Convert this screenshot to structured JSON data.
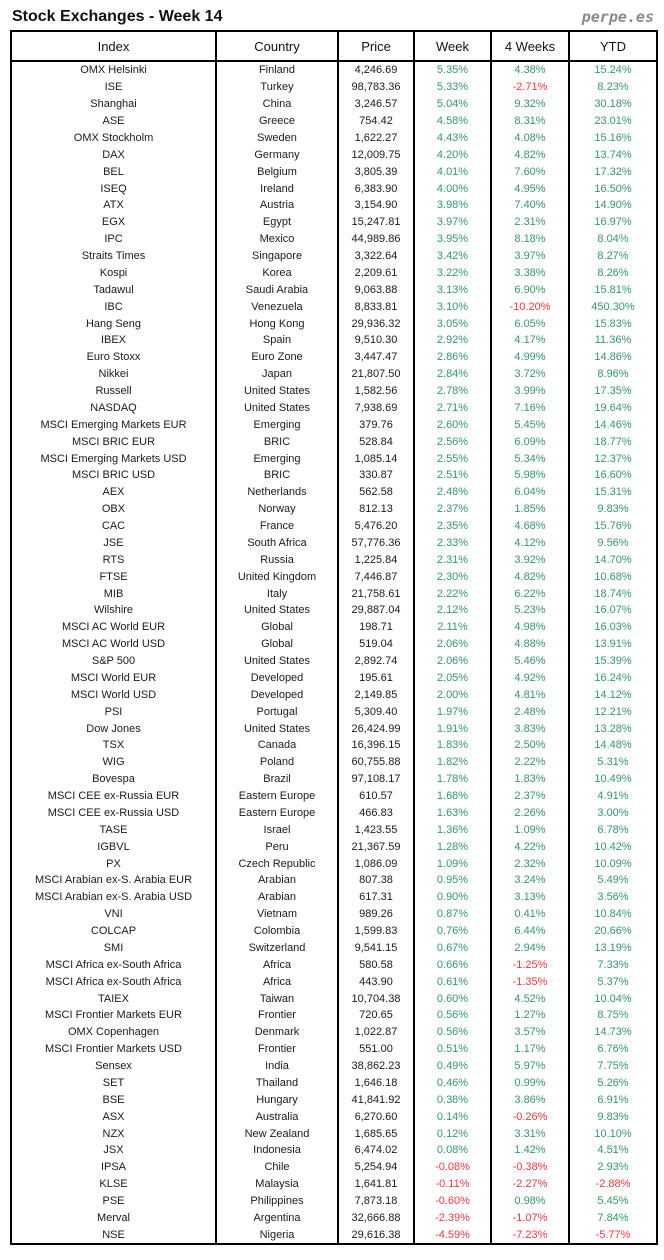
{
  "page": {
    "title": "Stock Exchanges - Week 14",
    "brand": "perpe.es"
  },
  "colors": {
    "positive": "#339966",
    "negative": "#f63a3a",
    "text": "#1a1a1a",
    "border": "#000000",
    "brand_gray": "#8a8a8a"
  },
  "chart_data": {
    "type": "table",
    "title": "Stock Exchanges - Week 14",
    "columns": [
      "Index",
      "Country",
      "Price",
      "Week",
      "4 Weeks",
      "YTD"
    ],
    "rows": [
      [
        "OMX Helsinki",
        "Finland",
        "4,246.69",
        "5.35%",
        "4.38%",
        "15.24%"
      ],
      [
        "ISE",
        "Turkey",
        "98,783.36",
        "5.33%",
        "-2.71%",
        "8.23%"
      ],
      [
        "Shanghai",
        "China",
        "3,246.57",
        "5.04%",
        "9.32%",
        "30.18%"
      ],
      [
        "ASE",
        "Greece",
        "754.42",
        "4.58%",
        "8.31%",
        "23.01%"
      ],
      [
        "OMX Stockholm",
        "Sweden",
        "1,622.27",
        "4.43%",
        "4.08%",
        "15.16%"
      ],
      [
        "DAX",
        "Germany",
        "12,009.75",
        "4.20%",
        "4.82%",
        "13.74%"
      ],
      [
        "BEL",
        "Belgium",
        "3,805.39",
        "4.01%",
        "7.60%",
        "17.32%"
      ],
      [
        "ISEQ",
        "Ireland",
        "6,383.90",
        "4.00%",
        "4.95%",
        "16.50%"
      ],
      [
        "ATX",
        "Austria",
        "3,154.90",
        "3.98%",
        "7.40%",
        "14.90%"
      ],
      [
        "EGX",
        "Egypt",
        "15,247.81",
        "3.97%",
        "2.31%",
        "16.97%"
      ],
      [
        "IPC",
        "Mexico",
        "44,989.86",
        "3.95%",
        "8.18%",
        "8.04%"
      ],
      [
        "Straits Times",
        "Singapore",
        "3,322.64",
        "3.42%",
        "3.97%",
        "8.27%"
      ],
      [
        "Kospi",
        "Korea",
        "2,209.61",
        "3.22%",
        "3.38%",
        "8.26%"
      ],
      [
        "Tadawul",
        "Saudi Arabia",
        "9,063.88",
        "3.13%",
        "6.90%",
        "15.81%"
      ],
      [
        "IBC",
        "Venezuela",
        "8,833.81",
        "3.10%",
        "-10.20%",
        "450.30%"
      ],
      [
        "Hang Seng",
        "Hong Kong",
        "29,936.32",
        "3.05%",
        "6.05%",
        "15.83%"
      ],
      [
        "IBEX",
        "Spain",
        "9,510.30",
        "2.92%",
        "4.17%",
        "11.36%"
      ],
      [
        "Euro Stoxx",
        "Euro Zone",
        "3,447.47",
        "2.86%",
        "4.99%",
        "14.86%"
      ],
      [
        "Nikkei",
        "Japan",
        "21,807.50",
        "2.84%",
        "3.72%",
        "8.96%"
      ],
      [
        "Russell",
        "United States",
        "1,582.56",
        "2.78%",
        "3.99%",
        "17.35%"
      ],
      [
        "NASDAQ",
        "United States",
        "7,938.69",
        "2.71%",
        "7.16%",
        "19.64%"
      ],
      [
        "MSCI Emerging Markets EUR",
        "Emerging",
        "379.76",
        "2.60%",
        "5.45%",
        "14.46%"
      ],
      [
        "MSCI BRIC EUR",
        "BRIC",
        "528.84",
        "2.56%",
        "6.09%",
        "18.77%"
      ],
      [
        "MSCI Emerging Markets USD",
        "Emerging",
        "1,085.14",
        "2.55%",
        "5.34%",
        "12.37%"
      ],
      [
        "MSCI BRIC USD",
        "BRIC",
        "330.87",
        "2.51%",
        "5.98%",
        "16.60%"
      ],
      [
        "AEX",
        "Netherlands",
        "562.58",
        "2.48%",
        "6.04%",
        "15.31%"
      ],
      [
        "OBX",
        "Norway",
        "812.13",
        "2.37%",
        "1.85%",
        "9.83%"
      ],
      [
        "CAC",
        "France",
        "5,476.20",
        "2.35%",
        "4.68%",
        "15.76%"
      ],
      [
        "JSE",
        "South Africa",
        "57,776.36",
        "2.33%",
        "4.12%",
        "9.56%"
      ],
      [
        "RTS",
        "Russia",
        "1,225.84",
        "2.31%",
        "3.92%",
        "14.70%"
      ],
      [
        "FTSE",
        "United Kingdom",
        "7,446.87",
        "2.30%",
        "4.82%",
        "10.68%"
      ],
      [
        "MIB",
        "Italy",
        "21,758.61",
        "2.22%",
        "6.22%",
        "18.74%"
      ],
      [
        "Wilshire",
        "United States",
        "29,887.04",
        "2.12%",
        "5.23%",
        "16.07%"
      ],
      [
        "MSCI AC World EUR",
        "Global",
        "198.71",
        "2.11%",
        "4.98%",
        "16.03%"
      ],
      [
        "MSCI AC World USD",
        "Global",
        "519.04",
        "2.06%",
        "4.88%",
        "13.91%"
      ],
      [
        "S&P 500",
        "United States",
        "2,892.74",
        "2.06%",
        "5.46%",
        "15.39%"
      ],
      [
        "MSCI World EUR",
        "Developed",
        "195.61",
        "2.05%",
        "4.92%",
        "16.24%"
      ],
      [
        "MSCI World USD",
        "Developed",
        "2,149.85",
        "2.00%",
        "4.81%",
        "14.12%"
      ],
      [
        "PSI",
        "Portugal",
        "5,309.40",
        "1.97%",
        "2.48%",
        "12.21%"
      ],
      [
        "Dow Jones",
        "United States",
        "26,424.99",
        "1.91%",
        "3.83%",
        "13.28%"
      ],
      [
        "TSX",
        "Canada",
        "16,396.15",
        "1.83%",
        "2.50%",
        "14.48%"
      ],
      [
        "WIG",
        "Poland",
        "60,755.88",
        "1.82%",
        "2.22%",
        "5.31%"
      ],
      [
        "Bovespa",
        "Brazil",
        "97,108.17",
        "1.78%",
        "1.83%",
        "10.49%"
      ],
      [
        "MSCI CEE ex-Russia EUR",
        "Eastern Europe",
        "610.57",
        "1.68%",
        "2.37%",
        "4.91%"
      ],
      [
        "MSCI CEE ex-Russia USD",
        "Eastern Europe",
        "466.83",
        "1.63%",
        "2.26%",
        "3.00%"
      ],
      [
        "TASE",
        "Israel",
        "1,423.55",
        "1.36%",
        "1.09%",
        "6.78%"
      ],
      [
        "IGBVL",
        "Peru",
        "21,367.59",
        "1.28%",
        "4.22%",
        "10.42%"
      ],
      [
        "PX",
        "Czech Republic",
        "1,086.09",
        "1.09%",
        "2.32%",
        "10.09%"
      ],
      [
        "MSCI Arabian ex-S. Arabia EUR",
        "Arabian",
        "807.38",
        "0.95%",
        "3.24%",
        "5.49%"
      ],
      [
        "MSCI Arabian ex-S. Arabia USD",
        "Arabian",
        "617.31",
        "0.90%",
        "3.13%",
        "3.56%"
      ],
      [
        "VNI",
        "Vietnam",
        "989.26",
        "0.87%",
        "0.41%",
        "10.84%"
      ],
      [
        "COLCAP",
        "Colombia",
        "1,599.83",
        "0.76%",
        "6.44%",
        "20.66%"
      ],
      [
        "SMI",
        "Switzerland",
        "9,541.15",
        "0.67%",
        "2.94%",
        "13.19%"
      ],
      [
        "MSCI Africa ex-South Africa",
        "Africa",
        "580.58",
        "0.66%",
        "-1.25%",
        "7.33%"
      ],
      [
        "MSCI Africa ex-South Africa",
        "Africa",
        "443.90",
        "0.61%",
        "-1.35%",
        "5.37%"
      ],
      [
        "TAIEX",
        "Taiwan",
        "10,704.38",
        "0.60%",
        "4.52%",
        "10.04%"
      ],
      [
        "MSCI Frontier Markets EUR",
        "Frontier",
        "720.65",
        "0.56%",
        "1.27%",
        "8.75%"
      ],
      [
        "OMX Copenhagen",
        "Denmark",
        "1,022.87",
        "0.56%",
        "3.57%",
        "14.73%"
      ],
      [
        "MSCI Frontier Markets USD",
        "Frontier",
        "551.00",
        "0.51%",
        "1.17%",
        "6.76%"
      ],
      [
        "Sensex",
        "India",
        "38,862.23",
        "0.49%",
        "5.97%",
        "7.75%"
      ],
      [
        "SET",
        "Thailand",
        "1,646.18",
        "0.46%",
        "0.99%",
        "5.26%"
      ],
      [
        "BSE",
        "Hungary",
        "41,841.92",
        "0.38%",
        "3.86%",
        "6.91%"
      ],
      [
        "ASX",
        "Australia",
        "6,270.60",
        "0.14%",
        "-0.26%",
        "9.83%"
      ],
      [
        "NZX",
        "New Zealand",
        "1,685.65",
        "0.12%",
        "3.31%",
        "10.10%"
      ],
      [
        "JSX",
        "Indonesia",
        "6,474.02",
        "0.08%",
        "1.42%",
        "4.51%"
      ],
      [
        "IPSA",
        "Chile",
        "5,254.94",
        "-0.08%",
        "-0.38%",
        "2.93%"
      ],
      [
        "KLSE",
        "Malaysia",
        "1,641.81",
        "-0.11%",
        "-2.27%",
        "-2.88%"
      ],
      [
        "PSE",
        "Philippines",
        "7,873.18",
        "-0.60%",
        "0.98%",
        "5.45%"
      ],
      [
        "Merval",
        "Argentina",
        "32,666.88",
        "-2.39%",
        "-1.07%",
        "7.84%"
      ],
      [
        "NSE",
        "Nigeria",
        "29,616.38",
        "-4.59%",
        "-7.23%",
        "-5.77%"
      ]
    ]
  }
}
